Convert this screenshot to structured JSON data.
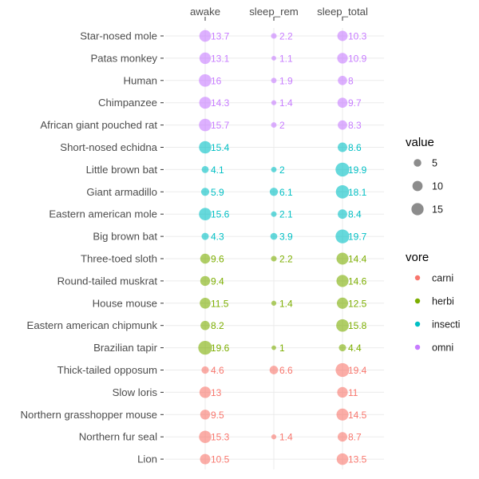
{
  "chart_data": {
    "type": "scatter",
    "title": "",
    "columns": [
      "awake",
      "sleep_rem",
      "sleep_total"
    ],
    "rows": [
      {
        "name": "Star-nosed mole",
        "vore": "omni",
        "awake": 13.7,
        "sleep_rem": 2.2,
        "sleep_total": 10.3
      },
      {
        "name": "Patas monkey",
        "vore": "omni",
        "awake": 13.1,
        "sleep_rem": 1.1,
        "sleep_total": 10.9
      },
      {
        "name": "Human",
        "vore": "omni",
        "awake": 16,
        "sleep_rem": 1.9,
        "sleep_total": 8
      },
      {
        "name": "Chimpanzee",
        "vore": "omni",
        "awake": 14.3,
        "sleep_rem": 1.4,
        "sleep_total": 9.7
      },
      {
        "name": "African giant pouched rat",
        "vore": "omni",
        "awake": 15.7,
        "sleep_rem": 2,
        "sleep_total": 8.3
      },
      {
        "name": "Short-nosed echidna",
        "vore": "insecti",
        "awake": 15.4,
        "sleep_rem": null,
        "sleep_total": 8.6
      },
      {
        "name": "Little brown bat",
        "vore": "insecti",
        "awake": 4.1,
        "sleep_rem": 2,
        "sleep_total": 19.9
      },
      {
        "name": "Giant armadillo",
        "vore": "insecti",
        "awake": 5.9,
        "sleep_rem": 6.1,
        "sleep_total": 18.1
      },
      {
        "name": "Eastern american mole",
        "vore": "insecti",
        "awake": 15.6,
        "sleep_rem": 2.1,
        "sleep_total": 8.4
      },
      {
        "name": "Big brown bat",
        "vore": "insecti",
        "awake": 4.3,
        "sleep_rem": 3.9,
        "sleep_total": 19.7
      },
      {
        "name": "Three-toed sloth",
        "vore": "herbi",
        "awake": 9.6,
        "sleep_rem": 2.2,
        "sleep_total": 14.4
      },
      {
        "name": "Round-tailed muskrat",
        "vore": "herbi",
        "awake": 9.4,
        "sleep_rem": null,
        "sleep_total": 14.6
      },
      {
        "name": "House mouse",
        "vore": "herbi",
        "awake": 11.5,
        "sleep_rem": 1.4,
        "sleep_total": 12.5
      },
      {
        "name": "Eastern american chipmunk",
        "vore": "herbi",
        "awake": 8.2,
        "sleep_rem": null,
        "sleep_total": 15.8
      },
      {
        "name": "Brazilian tapir",
        "vore": "herbi",
        "awake": 19.6,
        "sleep_rem": 1,
        "sleep_total": 4.4
      },
      {
        "name": "Thick-tailed opposum",
        "vore": "carni",
        "awake": 4.6,
        "sleep_rem": 6.6,
        "sleep_total": 19.4
      },
      {
        "name": "Slow loris",
        "vore": "carni",
        "awake": 13,
        "sleep_rem": null,
        "sleep_total": 11
      },
      {
        "name": "Northern grasshopper mouse",
        "vore": "carni",
        "awake": 9.5,
        "sleep_rem": null,
        "sleep_total": 14.5
      },
      {
        "name": "Northern fur seal",
        "vore": "carni",
        "awake": 15.3,
        "sleep_rem": 1.4,
        "sleep_total": 8.7
      },
      {
        "name": "Lion",
        "vore": "carni",
        "awake": 10.5,
        "sleep_rem": null,
        "sleep_total": 13.5
      }
    ],
    "legend_size": {
      "title": "value",
      "breaks": [
        5,
        10,
        15
      ]
    },
    "legend_color": {
      "title": "vore",
      "items": [
        {
          "label": "carni",
          "color": "#F8766D"
        },
        {
          "label": "herbi",
          "color": "#7CAE00"
        },
        {
          "label": "insecti",
          "color": "#00BFC4"
        },
        {
          "label": "omni",
          "color": "#C77CFF"
        }
      ]
    },
    "grid": true,
    "legend_position": "right"
  }
}
